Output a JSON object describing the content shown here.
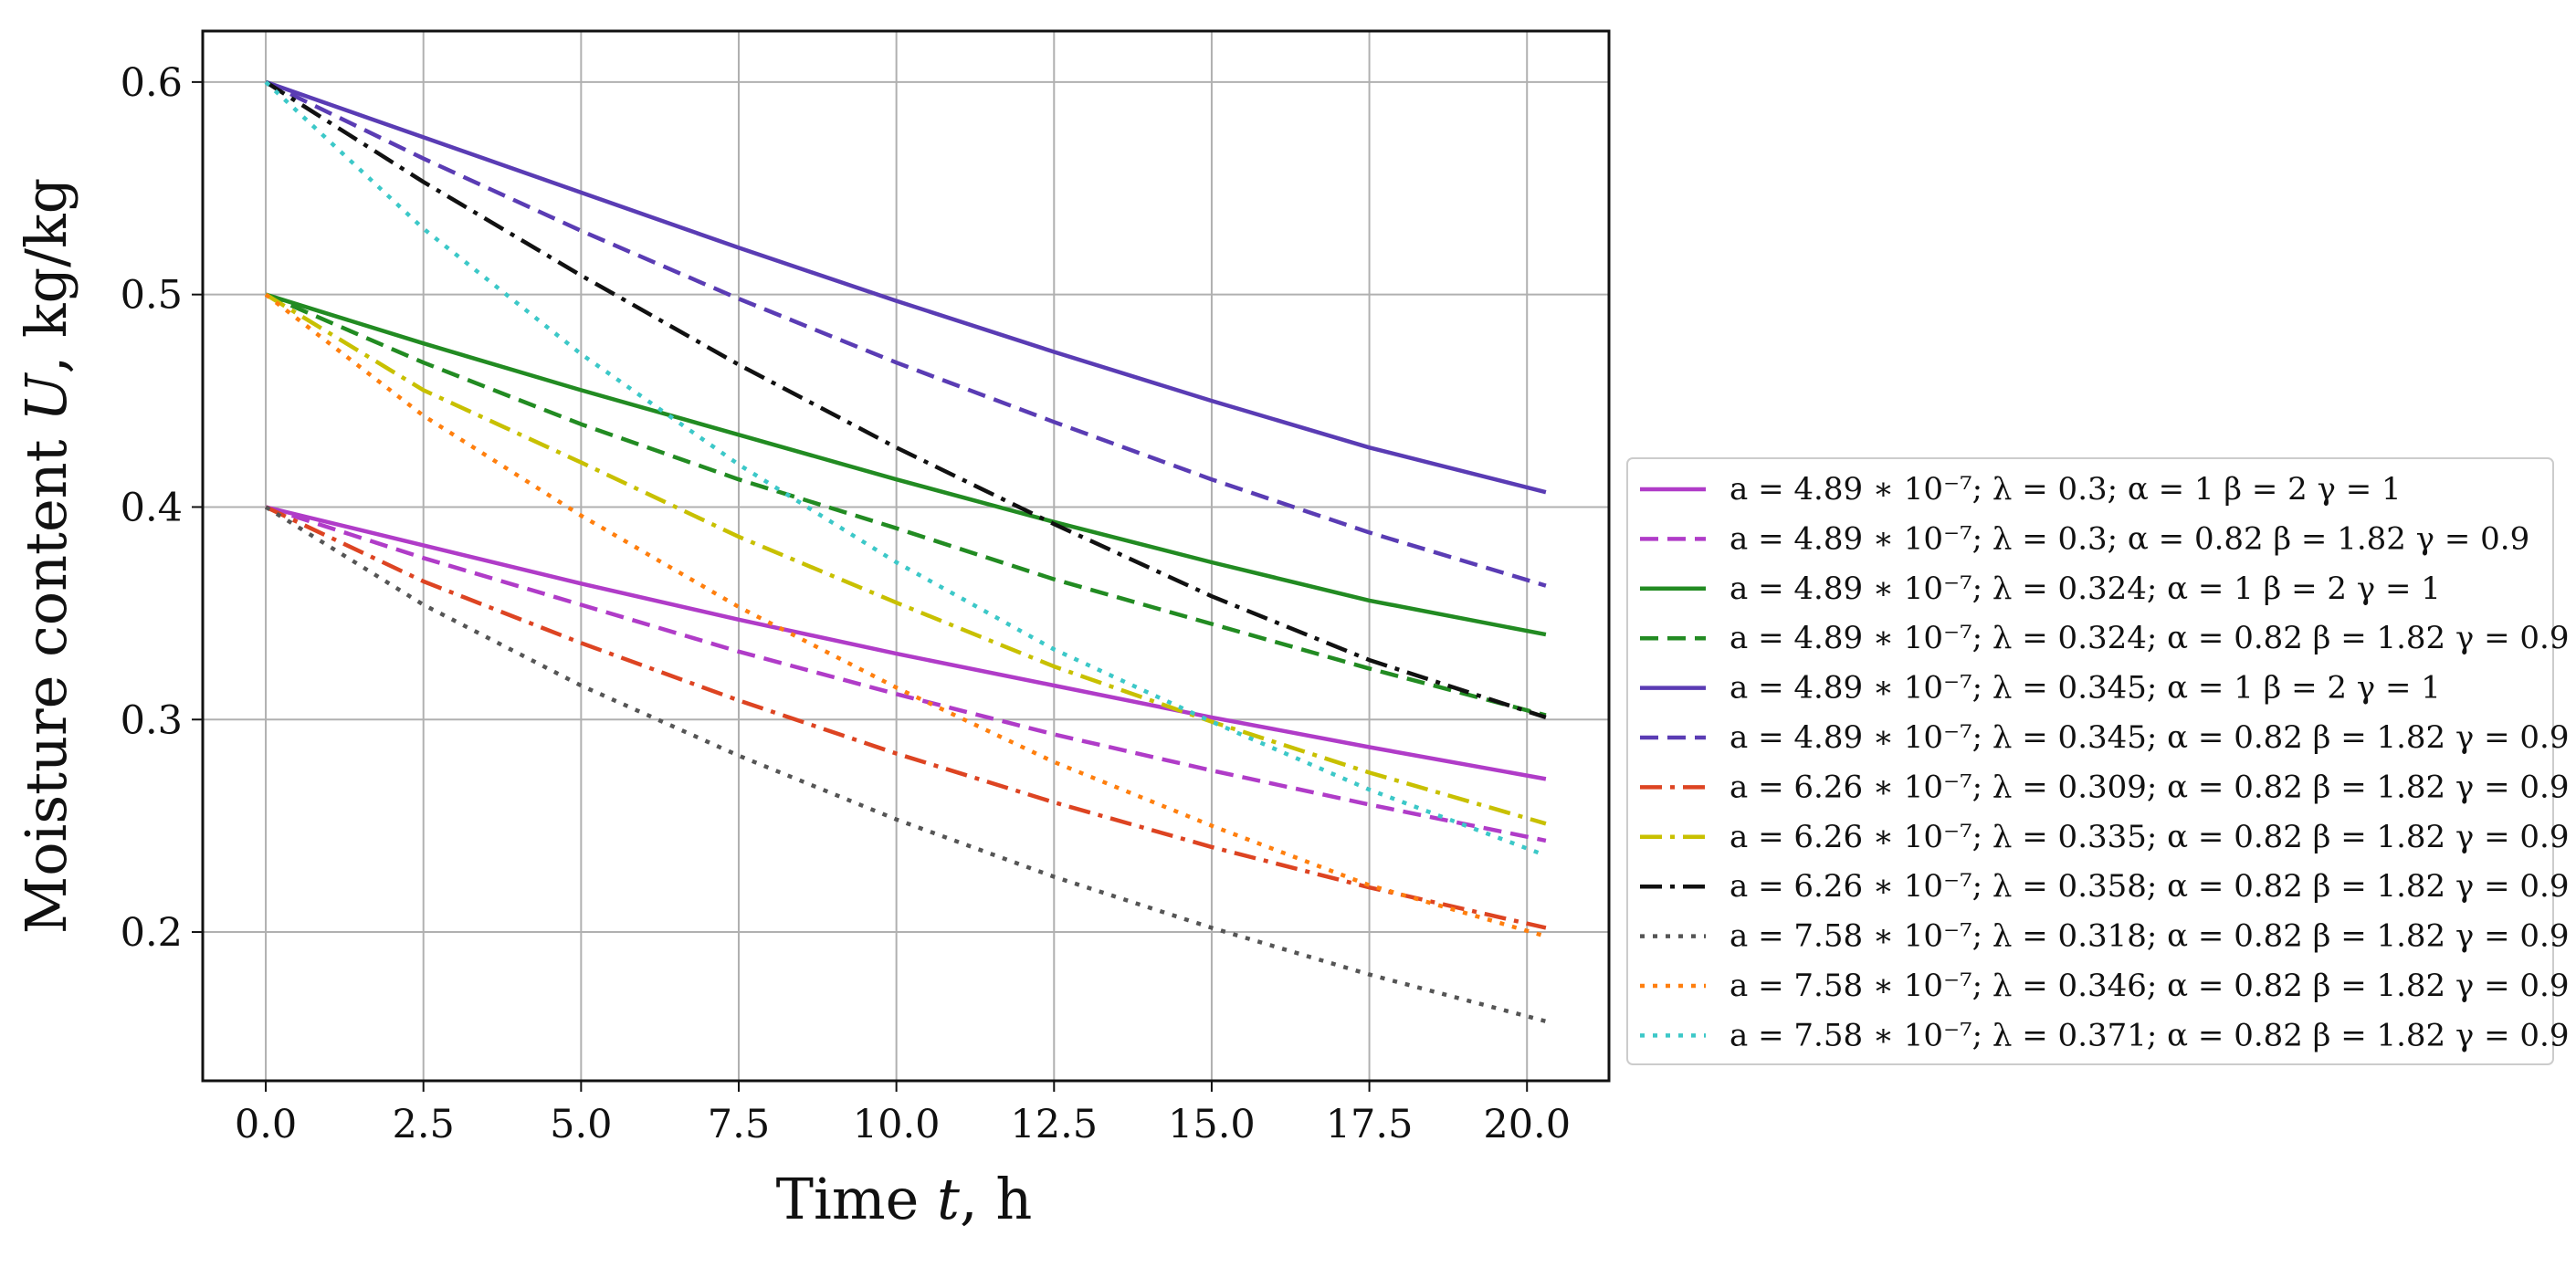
{
  "chart_data": {
    "type": "line",
    "title": "",
    "xlabel": "Time t, h",
    "xlabel_parts": [
      "Time ",
      "t",
      ", h"
    ],
    "ylabel": "Moisture content U, kg/kg",
    "ylabel_parts": [
      "Moisture content ",
      "U",
      ", kg/kg"
    ],
    "xlim": [
      -1.0,
      21.3
    ],
    "ylim": [
      0.13,
      0.624
    ],
    "x_ticks": [
      0.0,
      2.5,
      5.0,
      7.5,
      10.0,
      12.5,
      15.0,
      17.5,
      20.0
    ],
    "x_tick_labels": [
      "0.0",
      "2.5",
      "5.0",
      "7.5",
      "10.0",
      "12.5",
      "15.0",
      "17.5",
      "20.0"
    ],
    "y_ticks": [
      0.2,
      0.3,
      0.4,
      0.5,
      0.6
    ],
    "y_tick_labels": [
      "0.2",
      "0.3",
      "0.4",
      "0.5",
      "0.6"
    ],
    "grid": true,
    "legend_position": "right",
    "x": [
      0,
      2.5,
      5,
      7.5,
      10,
      12.5,
      15,
      17.5,
      20.3
    ],
    "series": [
      {
        "name": "a = 4.89 ∗ 10⁻⁷; λ = 0.3; α = 1 β = 2 γ = 1",
        "color": "#b03cc8",
        "style": "solid",
        "values": [
          0.4,
          0.382,
          0.364,
          0.347,
          0.331,
          0.316,
          0.301,
          0.287,
          0.272
        ]
      },
      {
        "name": "a = 4.89 ∗ 10⁻⁷; λ = 0.3; α = 0.82 β = 1.82 γ = 0.9",
        "color": "#b03cc8",
        "style": "dashed",
        "values": [
          0.4,
          0.376,
          0.354,
          0.332,
          0.312,
          0.293,
          0.276,
          0.26,
          0.243
        ]
      },
      {
        "name": "a = 4.89 ∗ 10⁻⁷; λ = 0.324; α = 1 β = 2 γ = 1",
        "color": "#228b22",
        "style": "solid",
        "values": [
          0.5,
          0.477,
          0.455,
          0.434,
          0.413,
          0.393,
          0.374,
          0.356,
          0.34
        ]
      },
      {
        "name": "a = 4.89 ∗ 10⁻⁷; λ = 0.324; α = 0.82 β = 1.82 γ = 0.9",
        "color": "#228b22",
        "style": "dashed",
        "values": [
          0.5,
          0.468,
          0.439,
          0.413,
          0.39,
          0.366,
          0.345,
          0.324,
          0.302
        ]
      },
      {
        "name": "a = 4.89 ∗ 10⁻⁷; λ = 0.345; α = 1 β = 2 γ = 1",
        "color": "#5a3cb4",
        "style": "solid",
        "values": [
          0.6,
          0.574,
          0.548,
          0.522,
          0.497,
          0.473,
          0.45,
          0.428,
          0.407
        ]
      },
      {
        "name": "a = 4.89 ∗ 10⁻⁷; λ = 0.345; α = 0.82 β = 1.82 γ = 0.9",
        "color": "#5a3cb4",
        "style": "dashed",
        "values": [
          0.6,
          0.564,
          0.53,
          0.498,
          0.468,
          0.44,
          0.413,
          0.388,
          0.363
        ]
      },
      {
        "name": "a = 6.26 ∗ 10⁻⁷; λ = 0.309; α = 0.82 β = 1.82 γ = 0.9",
        "color": "#dd4422",
        "style": "dashdot",
        "values": [
          0.4,
          0.365,
          0.336,
          0.309,
          0.284,
          0.261,
          0.24,
          0.221,
          0.202
        ]
      },
      {
        "name": "a = 6.26 ∗ 10⁻⁷; λ = 0.335; α = 0.82 β = 1.82 γ = 0.9",
        "color": "#c8c000",
        "style": "dashdot",
        "values": [
          0.5,
          0.455,
          0.421,
          0.386,
          0.355,
          0.325,
          0.299,
          0.275,
          0.251
        ]
      },
      {
        "name": "a = 6.26 ∗ 10⁻⁷; λ = 0.358; α = 0.82 β = 1.82 γ = 0.9",
        "color": "#111111",
        "style": "dashdot",
        "values": [
          0.6,
          0.553,
          0.509,
          0.467,
          0.428,
          0.392,
          0.358,
          0.328,
          0.301
        ]
      },
      {
        "name": "a = 7.58 ∗ 10⁻⁷; λ = 0.318; α = 0.82 β = 1.82 γ = 0.9",
        "color": "#555555",
        "style": "dotted",
        "values": [
          0.4,
          0.354,
          0.316,
          0.283,
          0.253,
          0.226,
          0.202,
          0.18,
          0.158
        ]
      },
      {
        "name": "a = 7.58 ∗ 10⁻⁷; λ = 0.346; α = 0.82 β = 1.82 γ = 0.9",
        "color": "#ff7f0e",
        "style": "dotted",
        "values": [
          0.5,
          0.443,
          0.396,
          0.353,
          0.315,
          0.28,
          0.25,
          0.222,
          0.198
        ]
      },
      {
        "name": "a = 7.58 ∗ 10⁻⁷; λ = 0.371; α = 0.82 β = 1.82 γ = 0.9",
        "color": "#3cc8c8",
        "style": "dotted",
        "values": [
          0.6,
          0.531,
          0.472,
          0.42,
          0.374,
          0.333,
          0.299,
          0.267,
          0.236
        ]
      }
    ]
  }
}
